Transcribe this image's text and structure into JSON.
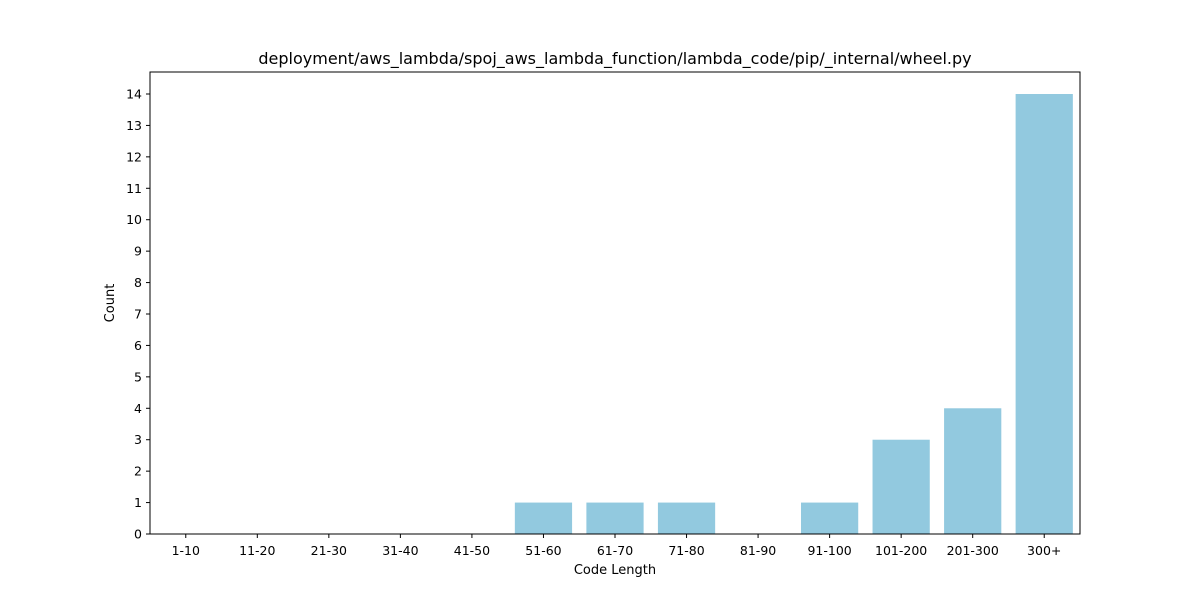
{
  "chart_data": {
    "type": "bar",
    "title": "deployment/aws_lambda/spoj_aws_lambda_function/lambda_code/pip/_internal/wheel.py",
    "xlabel": "Code Length",
    "ylabel": "Count",
    "categories": [
      "1-10",
      "11-20",
      "21-30",
      "31-40",
      "41-50",
      "51-60",
      "61-70",
      "71-80",
      "81-90",
      "91-100",
      "101-200",
      "201-300",
      "300+"
    ],
    "values": [
      0,
      0,
      0,
      0,
      0,
      1,
      1,
      1,
      0,
      1,
      3,
      4,
      14
    ],
    "ylim": [
      0,
      14.7
    ],
    "yticks": [
      0,
      1,
      2,
      3,
      4,
      5,
      6,
      7,
      8,
      9,
      10,
      11,
      12,
      13,
      14
    ],
    "bar_color": "#92c9df",
    "grid": false,
    "legend": false
  }
}
